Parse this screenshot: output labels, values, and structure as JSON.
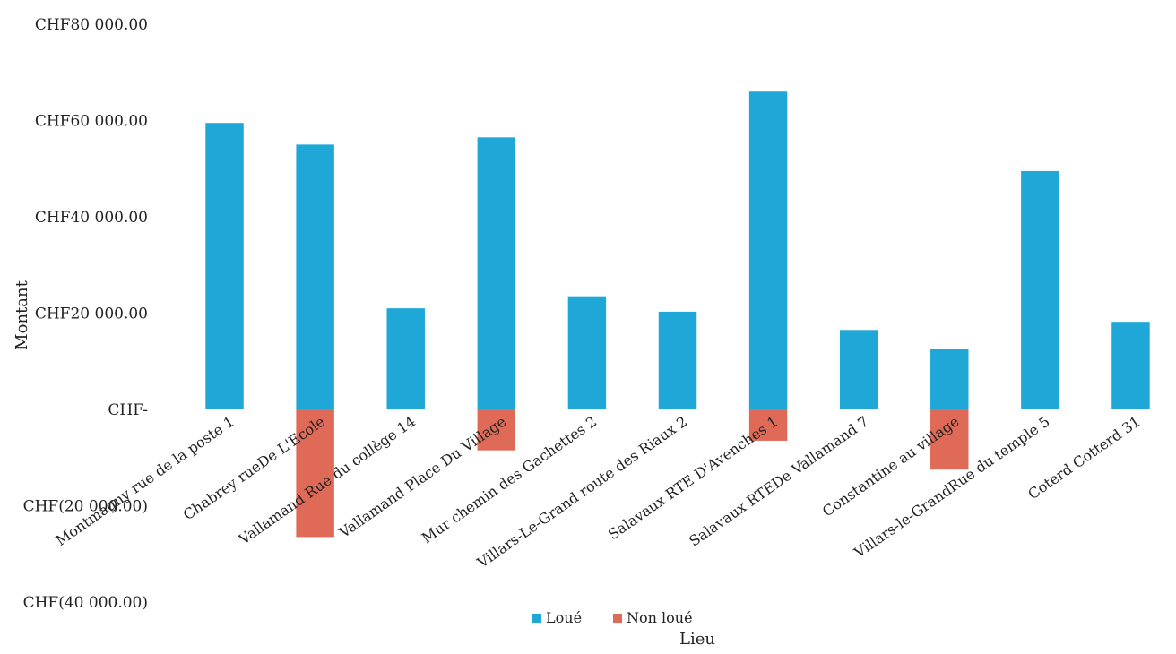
{
  "chart_data": {
    "type": "bar",
    "stacked": true,
    "xlabel": "Lieu",
    "ylabel": "Montant",
    "ylim": [
      -40000,
      80000
    ],
    "yticks": [
      80000,
      60000,
      40000,
      20000,
      0,
      -20000,
      -40000
    ],
    "ytick_labels": [
      "CHF80 000.00",
      "CHF60 000.00",
      "CHF40 000.00",
      "CHF20 000.00",
      "CHF-",
      "CHF(20 000.00)",
      "CHF(40 000.00)"
    ],
    "grid": false,
    "legend_position": "bottom",
    "categories": [
      "Montmagny rue de la poste 1",
      "Chabrey rueDe L'Ecole",
      "Vallamand Rue du collège 14",
      "Vallamand Place Du Village",
      "Mur chemin des Gachettes 2",
      "Villars-Le-Grand route des Riaux 2",
      "Salavaux RTE D'Avenches 1",
      "Salavaux RTEDe Vallamand 7",
      "Constantine au village",
      "Villars-le-GrandRue du temple 5",
      "Coterd Cotterd 31"
    ],
    "series": [
      {
        "name": "Loué",
        "color": "#1fa7d8",
        "values": [
          59500,
          55000,
          21000,
          56500,
          23500,
          20300,
          66000,
          16500,
          12500,
          49500,
          18200
        ]
      },
      {
        "name": "Non loué",
        "color": "#e06a58",
        "values": [
          0,
          -26500,
          0,
          -8500,
          0,
          0,
          -6500,
          0,
          -12500,
          0,
          0
        ]
      }
    ]
  }
}
